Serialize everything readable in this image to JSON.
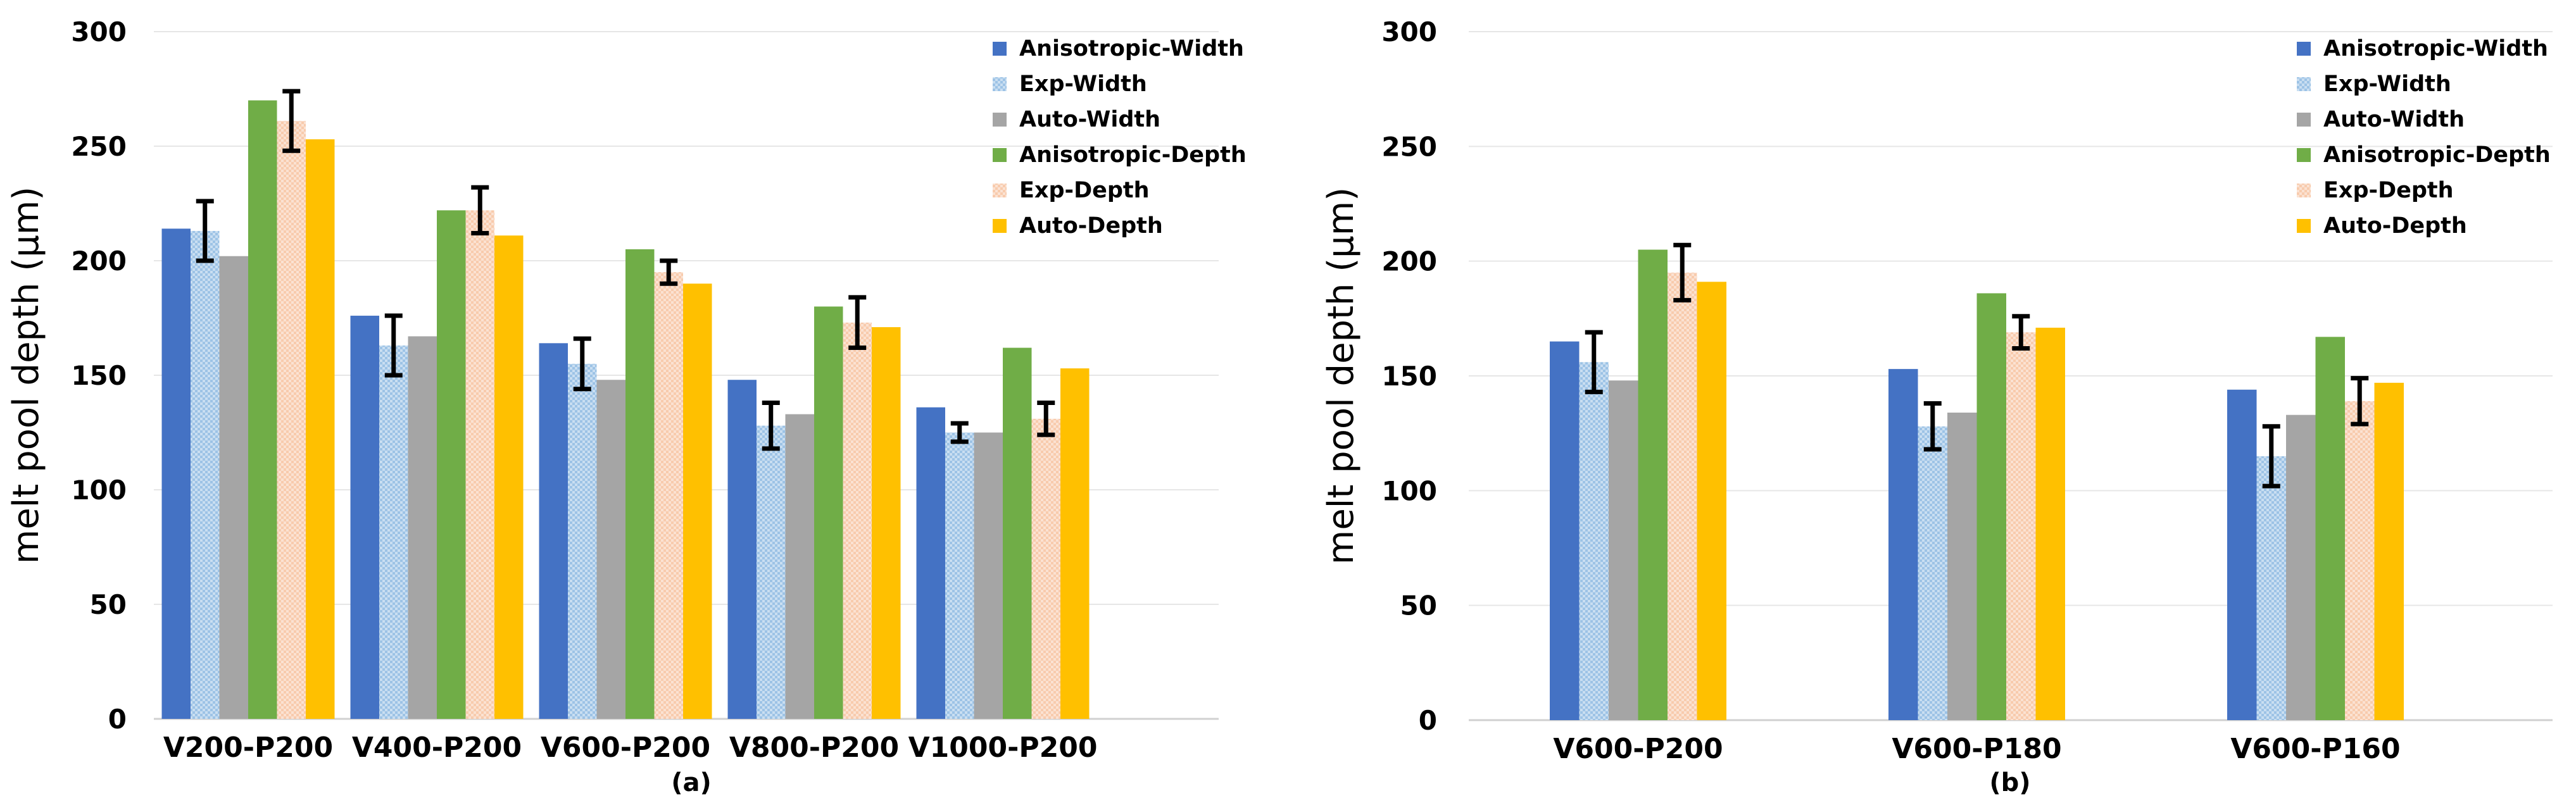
{
  "chart_data": [
    {
      "type": "bar",
      "panel_label": "(a)",
      "ylabel": "melt pool depth (μm)",
      "ylim": [
        0,
        300
      ],
      "yticks": [
        0,
        50,
        100,
        150,
        200,
        250,
        300
      ],
      "grid": true,
      "legend_position": "top-right",
      "categories": [
        "V200-P200",
        "V400-P200",
        "V600-P200",
        "V800-P200",
        "V1000-P200"
      ],
      "series": [
        {
          "name": "Anisotropic-Width",
          "color": "#4472C4",
          "pattern": "solid",
          "values": [
            214,
            176,
            164,
            148,
            136
          ]
        },
        {
          "name": "Exp-Width",
          "color": "#9DC3E6",
          "pattern": "checker",
          "values": [
            213,
            163,
            155,
            128,
            125
          ],
          "errors": [
            13,
            13,
            11,
            10,
            4
          ]
        },
        {
          "name": "Auto-Width",
          "color": "#A5A5A5",
          "pattern": "solid",
          "values": [
            202,
            167,
            148,
            133,
            125
          ]
        },
        {
          "name": "Anisotropic-Depth",
          "color": "#70AD47",
          "pattern": "solid",
          "values": [
            270,
            222,
            205,
            180,
            162
          ]
        },
        {
          "name": "Exp-Depth",
          "color": "#F8CBAD",
          "pattern": "checker",
          "values": [
            261,
            222,
            195,
            173,
            131
          ],
          "errors": [
            13,
            10,
            5,
            11,
            7
          ]
        },
        {
          "name": "Auto-Depth",
          "color": "#FFC000",
          "pattern": "solid",
          "values": [
            253,
            211,
            190,
            171,
            153
          ]
        }
      ]
    },
    {
      "type": "bar",
      "panel_label": "(b)",
      "ylabel": "melt pool depth (μm)",
      "ylim": [
        0,
        300
      ],
      "yticks": [
        0,
        50,
        100,
        150,
        200,
        250,
        300
      ],
      "grid": true,
      "legend_position": "top-right",
      "categories": [
        "V600-P200",
        "V600-P180",
        "V600-P160"
      ],
      "series": [
        {
          "name": "Anisotropic-Width",
          "color": "#4472C4",
          "pattern": "solid",
          "values": [
            165,
            153,
            144
          ]
        },
        {
          "name": "Exp-Width",
          "color": "#9DC3E6",
          "pattern": "checker",
          "values": [
            156,
            128,
            115
          ],
          "errors": [
            13,
            10,
            13
          ]
        },
        {
          "name": "Auto-Width",
          "color": "#A5A5A5",
          "pattern": "solid",
          "values": [
            148,
            134,
            133
          ]
        },
        {
          "name": "Anisotropic-Depth",
          "color": "#70AD47",
          "pattern": "solid",
          "values": [
            205,
            186,
            167
          ]
        },
        {
          "name": "Exp-Depth",
          "color": "#F8CBAD",
          "pattern": "checker",
          "values": [
            195,
            169,
            139
          ],
          "errors": [
            12,
            7,
            10
          ]
        },
        {
          "name": "Auto-Depth",
          "color": "#FFC000",
          "pattern": "solid",
          "values": [
            191,
            171,
            147
          ]
        }
      ]
    }
  ]
}
